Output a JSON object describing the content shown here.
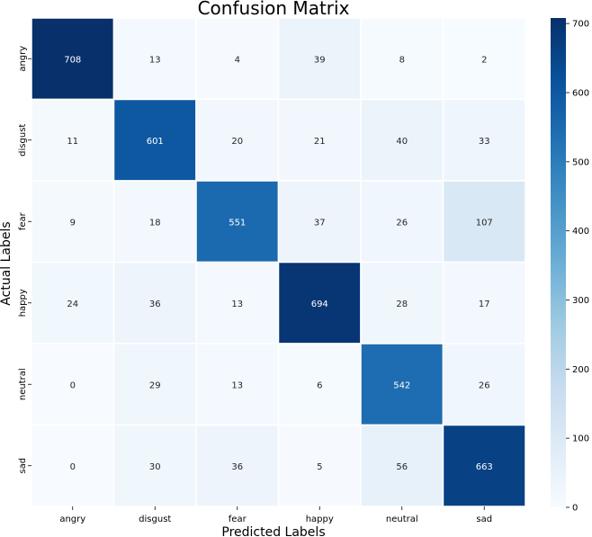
{
  "chart_data": {
    "type": "heatmap",
    "title": "Confusion Matrix",
    "xlabel": "Predicted Labels",
    "ylabel": "Actual Labels",
    "x_categories": [
      "angry",
      "disgust",
      "fear",
      "happy",
      "neutral",
      "sad"
    ],
    "y_categories": [
      "angry",
      "disgust",
      "fear",
      "happy",
      "neutral",
      "sad"
    ],
    "values": [
      [
        708,
        13,
        4,
        39,
        8,
        2
      ],
      [
        11,
        601,
        20,
        21,
        40,
        33
      ],
      [
        9,
        18,
        551,
        37,
        26,
        107
      ],
      [
        24,
        36,
        13,
        694,
        28,
        17
      ],
      [
        0,
        29,
        13,
        6,
        542,
        26
      ],
      [
        0,
        30,
        36,
        5,
        56,
        663
      ]
    ],
    "colormap": "Blues",
    "color_range": [
      0,
      708
    ],
    "colorbar_ticks": [
      0,
      100,
      200,
      300,
      400,
      500,
      600,
      700
    ],
    "grid": "white cell separators"
  }
}
